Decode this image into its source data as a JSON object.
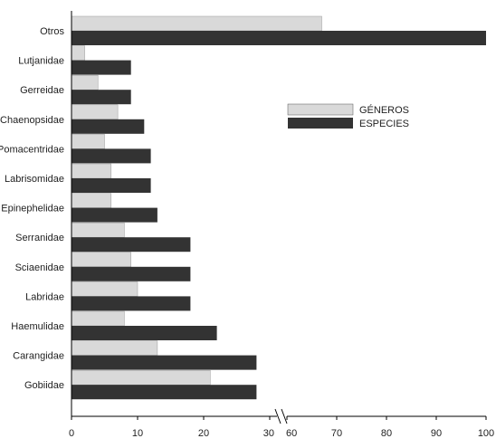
{
  "chart_data": {
    "type": "bar",
    "orientation": "horizontal",
    "categories": [
      "Otros",
      "Lutjanidae",
      "Gerreidae",
      "Chaenopsidae",
      "Pomacentridae",
      "Labrisomidae",
      "Epinephelidae",
      "Serranidae",
      "Sciaenidae",
      "Labridae",
      "Haemulidae",
      "Carangidae",
      "Gobiidae"
    ],
    "series": [
      {
        "name": "GÉNEROS",
        "color": "#d9d9d9",
        "values": [
          67,
          2,
          4,
          7,
          5,
          6,
          6,
          8,
          9,
          10,
          8,
          13,
          21
        ]
      },
      {
        "name": "ESPECIES",
        "color": "#333333",
        "values": [
          100,
          9,
          9,
          11,
          12,
          12,
          13,
          18,
          18,
          18,
          22,
          28,
          28
        ]
      }
    ],
    "x_axis": {
      "ticks": [
        "0",
        "10",
        "20",
        "30",
        "60",
        "70",
        "80",
        "90",
        "100"
      ],
      "broken": true,
      "break_between": [
        30,
        60
      ]
    },
    "legend_position": "right-center",
    "grid": false
  }
}
